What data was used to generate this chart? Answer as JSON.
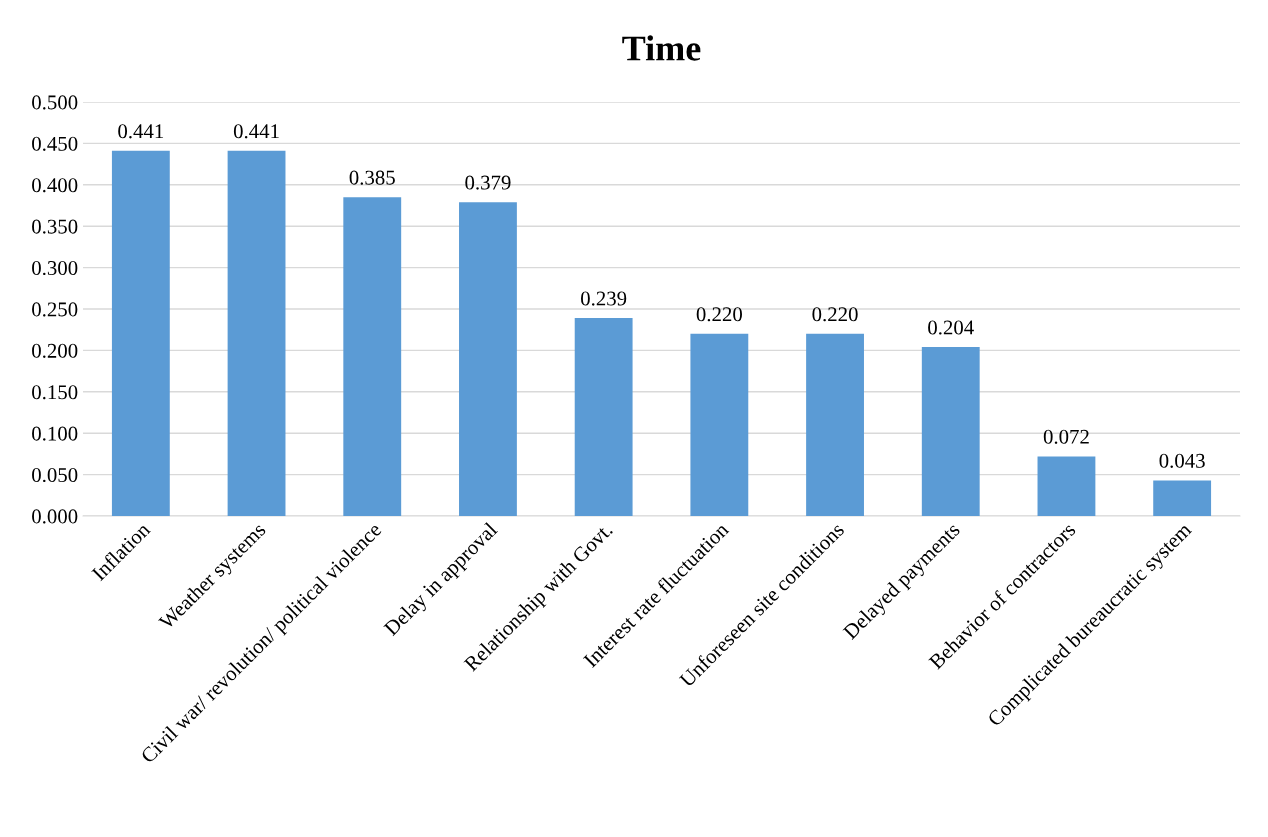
{
  "chart_data": {
    "type": "bar",
    "title": "Time",
    "categories": [
      "Inflation",
      "Weather systems",
      "Civil war/ revolution/ political violence",
      "Delay in approval",
      "Relationship with Govt.",
      "Interest rate fluctuation",
      "Unforeseen site conditions",
      "Delayed payments",
      "Behavior of contractors",
      "Complicated bureaucratic system"
    ],
    "values": [
      0.441,
      0.441,
      0.385,
      0.379,
      0.239,
      0.22,
      0.22,
      0.204,
      0.072,
      0.043
    ],
    "value_labels": [
      "0.441",
      "0.441",
      "0.385",
      "0.379",
      "0.239",
      "0.220",
      "0.220",
      "0.204",
      "0.072",
      "0.043"
    ],
    "color": "#5b9bd5",
    "ylim": [
      0,
      0.5
    ],
    "yticks": [
      {
        "value": 0,
        "label": "0.000"
      },
      {
        "value": 0.05,
        "label": "0.050"
      },
      {
        "value": 0.1,
        "label": "0.100"
      },
      {
        "value": 0.15,
        "label": "0.150"
      },
      {
        "value": 0.2,
        "label": "0.200"
      },
      {
        "value": 0.25,
        "label": "0.250"
      },
      {
        "value": 0.3,
        "label": "0.300"
      },
      {
        "value": 0.35,
        "label": "0.350"
      },
      {
        "value": 0.4,
        "label": "0.400"
      },
      {
        "value": 0.45,
        "label": "0.450"
      },
      {
        "value": 0.5,
        "label": "0.500"
      }
    ],
    "grid": "y",
    "legend": false
  }
}
